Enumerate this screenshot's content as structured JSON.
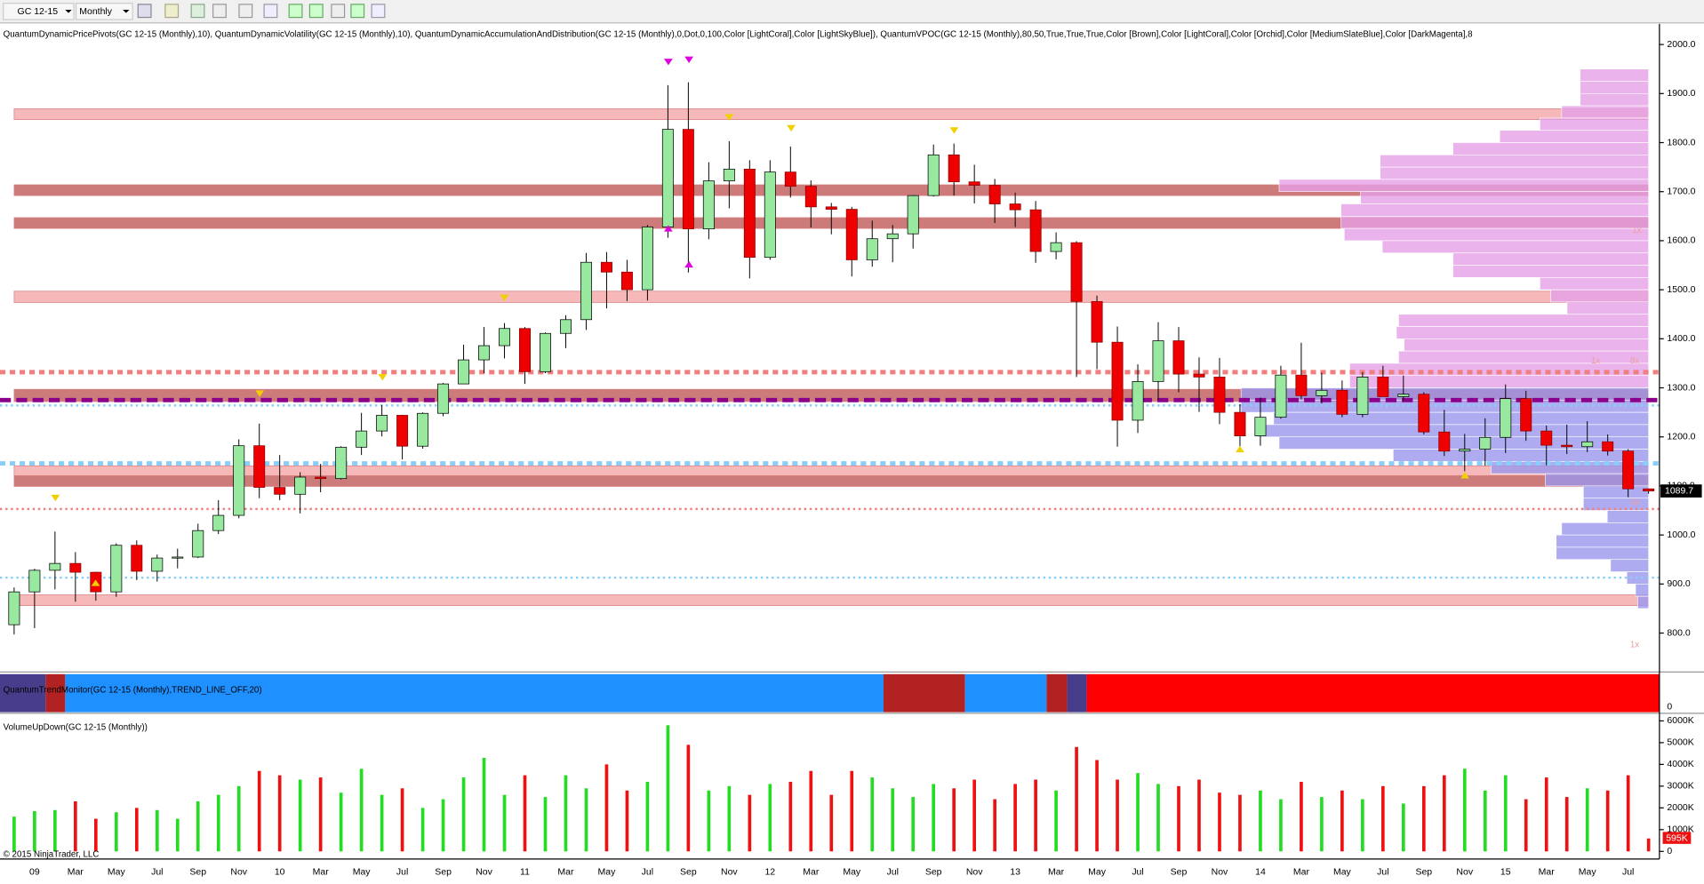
{
  "toolbar": {
    "symbol": "GC 12-15",
    "interval": "Monthly"
  },
  "trend_monitor": {
    "label": "QuantumTrendMonitor(GC 12-15 (Monthly),TREND_LINE_OFF,20)",
    "yticks": [
      0
    ]
  },
  "copyright": "© 2015 NinjaTrader, LLC",
  "chart_data": [
    {
      "type": "candlestick",
      "title": "QuantumDynamicPricePivots(GC 12-15 (Monthly),10), QuantumDynamicVolatility(GC 12-15 (Monthly),10), QuantumDynamicAccumulationAndDistribution(GC 12-15 (Monthly),0,Dot,0,100,Color [LightCoral],Color [LightSkyBlue]), QuantumVPOC(GC 12-15 (Monthly),80,50,True,True,True,Color [Brown],Color [LightCoral],Color [Orchid],Color [MediumSlateBlue],Color [DarkMagenta],8",
      "categories": [
        null,
        "09",
        null,
        "Mar",
        null,
        "May",
        null,
        "Jul",
        null,
        "Sep",
        null,
        "Nov",
        null,
        "10",
        null,
        "Mar",
        null,
        "May",
        null,
        "Jul",
        null,
        "Sep",
        null,
        "Nov",
        null,
        "11",
        null,
        "Mar",
        null,
        "May",
        null,
        "Jul",
        null,
        "Sep",
        null,
        "Nov",
        null,
        "12",
        null,
        "Mar",
        null,
        "May",
        null,
        "Jul",
        null,
        "Sep",
        null,
        "Nov",
        null,
        "13",
        null,
        "Mar",
        null,
        "May",
        null,
        "Jul",
        null,
        "Sep",
        null,
        "Nov",
        null,
        "14",
        null,
        "Mar",
        null,
        "May",
        null,
        "Jul",
        null,
        "Sep",
        null,
        "Nov",
        null,
        "15",
        null,
        "Mar",
        null,
        "May",
        null,
        "Jul",
        null
      ],
      "open": [
        817,
        884,
        928,
        942,
        924,
        884,
        979,
        926,
        953,
        955,
        1009,
        1040,
        1182,
        1097,
        1083,
        1118,
        1115,
        1179,
        1212,
        1244,
        1181,
        1248,
        1308,
        1357,
        1386,
        1421,
        1333,
        1411,
        1439,
        1556,
        1536,
        1500,
        1628,
        1827,
        1624,
        1722,
        1746,
        1566,
        1740,
        1711,
        1669,
        1664,
        1561,
        1604,
        1614,
        1692,
        1775,
        1720,
        1713,
        1675,
        1663,
        1578,
        1596,
        1476,
        1393,
        1234,
        1313,
        1396,
        1328,
        1322,
        1250,
        1202,
        1240,
        1326,
        1284,
        1295,
        1246,
        1322,
        1282,
        1287,
        1210,
        1171,
        1175,
        1199,
        1278,
        1212,
        1183,
        1180,
        1190,
        1171,
        1094
      ],
      "high": [
        893,
        931,
        1007,
        965,
        925,
        983,
        989,
        960,
        972,
        1023,
        1071,
        1195,
        1227,
        1163,
        1128,
        1145,
        1181,
        1249,
        1265,
        1245,
        1250,
        1310,
        1388,
        1424,
        1432,
        1424,
        1413,
        1448,
        1575,
        1577,
        1561,
        1632,
        1917,
        1923,
        1760,
        1803,
        1764,
        1764,
        1792,
        1723,
        1677,
        1669,
        1641,
        1632,
        1693,
        1796,
        1798,
        1755,
        1726,
        1698,
        1681,
        1617,
        1599,
        1488,
        1425,
        1348,
        1434,
        1424,
        1362,
        1361,
        1267,
        1280,
        1345,
        1392,
        1331,
        1315,
        1332,
        1345,
        1325,
        1291,
        1255,
        1206,
        1238,
        1307,
        1294,
        1223,
        1225,
        1232,
        1205,
        1175,
        1095
      ],
      "low": [
        797,
        810,
        889,
        864,
        866,
        874,
        908,
        905,
        932,
        953,
        1002,
        1034,
        1075,
        1071,
        1044,
        1087,
        1113,
        1163,
        1201,
        1154,
        1176,
        1242,
        1318,
        1330,
        1360,
        1308,
        1330,
        1381,
        1418,
        1462,
        1477,
        1478,
        1606,
        1535,
        1603,
        1666,
        1523,
        1561,
        1688,
        1627,
        1613,
        1527,
        1547,
        1556,
        1584,
        1690,
        1692,
        1676,
        1636,
        1628,
        1555,
        1562,
        1322,
        1338,
        1180,
        1208,
        1275,
        1291,
        1251,
        1226,
        1180,
        1182,
        1237,
        1277,
        1268,
        1240,
        1240,
        1283,
        1273,
        1205,
        1161,
        1130,
        1141,
        1167,
        1192,
        1142,
        1165,
        1169,
        1162,
        1077,
        1084
      ],
      "close": [
        884,
        928,
        942,
        924,
        884,
        979,
        926,
        953,
        955,
        1009,
        1040,
        1182,
        1097,
        1083,
        1118,
        1115,
        1179,
        1212,
        1244,
        1181,
        1248,
        1308,
        1357,
        1386,
        1421,
        1333,
        1411,
        1439,
        1556,
        1536,
        1500,
        1628,
        1827,
        1624,
        1722,
        1746,
        1566,
        1740,
        1711,
        1669,
        1664,
        1561,
        1604,
        1614,
        1692,
        1775,
        1720,
        1713,
        1675,
        1663,
        1578,
        1596,
        1476,
        1393,
        1234,
        1313,
        1396,
        1328,
        1322,
        1250,
        1202,
        1240,
        1326,
        1284,
        1295,
        1246,
        1322,
        1282,
        1287,
        1210,
        1171,
        1175,
        1199,
        1278,
        1212,
        1183,
        1180,
        1190,
        1171,
        1094,
        1089.7
      ],
      "up_color": "#98e8a0",
      "down_color": "#ee0000",
      "ylim": [
        765,
        2042
      ],
      "yticks": [
        {
          "value": 800,
          "label": "800.0"
        },
        {
          "value": 900,
          "label": "900.0"
        },
        {
          "value": 1000,
          "label": "1000.0"
        },
        {
          "value": 1100,
          "label": "1100.0"
        },
        {
          "value": 1200,
          "label": "1200.0"
        },
        {
          "value": 1300,
          "label": "1300.0"
        },
        {
          "value": 1400,
          "label": "1400.0"
        },
        {
          "value": 1500,
          "label": "1500.0"
        },
        {
          "value": 1600,
          "label": "1600.0"
        },
        {
          "value": 1700,
          "label": "1700.0"
        },
        {
          "value": 1800,
          "label": "1800.0"
        },
        {
          "value": 1900,
          "label": "1900.0"
        },
        {
          "value": 2000,
          "label": "2000.0"
        }
      ],
      "zones": [
        {
          "low": 1847,
          "high": 1869,
          "color": "#f6b8b8"
        },
        {
          "low": 1692,
          "high": 1714,
          "color": "#cd7a7a"
        },
        {
          "low": 1625,
          "high": 1647,
          "color": "#cd7a7a"
        },
        {
          "low": 1474,
          "high": 1497,
          "color": "#f6b8b8"
        },
        {
          "low": 1272,
          "high": 1297,
          "color": "#cd7a7a"
        },
        {
          "low": 1121,
          "high": 1141,
          "color": "#f6b8b8"
        },
        {
          "low": 1099,
          "high": 1121,
          "color": "#cd7a7a"
        },
        {
          "low": 856,
          "high": 878,
          "color": "#f6b8b8"
        }
      ],
      "levels": [
        {
          "value": 1332,
          "color": "#f08080",
          "style": "dotted",
          "weight": "heavy"
        },
        {
          "value": 1275,
          "color": "#8b008b",
          "style": "dashed",
          "weight": "heavy"
        },
        {
          "value": 1264,
          "color": "#87cefa",
          "style": "dotted",
          "weight": "light"
        },
        {
          "value": 1146,
          "color": "#87cefa",
          "style": "dotted",
          "weight": "heavy"
        },
        {
          "value": 1053,
          "color": "#f08080",
          "style": "dotted",
          "weight": "light"
        },
        {
          "value": 913,
          "color": "#87cefa",
          "style": "dotted",
          "weight": "light"
        }
      ],
      "profile": {
        "bins": [
          1950,
          1925,
          1900,
          1875,
          1850,
          1825,
          1800,
          1775,
          1750,
          1725,
          1700,
          1675,
          1650,
          1625,
          1600,
          1575,
          1550,
          1525,
          1500,
          1475,
          1450,
          1425,
          1400,
          1375,
          1350,
          1325,
          1300,
          1275,
          1250,
          1225,
          1200,
          1175,
          1150,
          1125,
          1100,
          1075,
          1050,
          1025,
          1000,
          975,
          950,
          925,
          900,
          875,
          850
        ],
        "volumes": [
          63,
          63,
          63,
          80,
          100,
          137,
          180,
          247,
          247,
          340,
          265,
          283,
          283,
          280,
          245,
          180,
          180,
          100,
          90,
          75,
          230,
          232,
          225,
          230,
          275,
          275,
          375,
          375,
          345,
          360,
          340,
          235,
          145,
          95,
          60,
          60,
          38,
          80,
          85,
          85,
          35,
          20,
          12,
          10
        ],
        "split": 1300,
        "color_above": "#e6a0e6",
        "color_below": "#9b96ee"
      },
      "annotations": [
        "1x",
        "1x",
        "8x",
        "4x",
        "1x"
      ]
    },
    {
      "type": "bar",
      "title": "VolumeUpDown(GC 12-15 (Monthly))",
      "values": [
        1600,
        1850,
        1900,
        2300,
        1500,
        1800,
        2000,
        1900,
        1500,
        2300,
        2600,
        3000,
        3700,
        3500,
        3300,
        3400,
        2700,
        3800,
        2600,
        2900,
        2000,
        2400,
        3400,
        4300,
        2600,
        3500,
        2500,
        3500,
        2900,
        4000,
        2800,
        3200,
        5800,
        4900,
        2800,
        3000,
        2600,
        3100,
        3200,
        3700,
        2600,
        3700,
        3400,
        2900,
        2500,
        3100,
        2900,
        3300,
        2400,
        3100,
        3300,
        2800,
        4800,
        4200,
        3300,
        3600,
        3100,
        3000,
        3300,
        2700,
        2600,
        2800,
        2400,
        3200,
        2500,
        2800,
        2400,
        3000,
        2200,
        3000,
        3500,
        3800,
        2800,
        3500,
        2400,
        3400,
        2500,
        2900,
        2800,
        3500,
        595
      ],
      "value_labels": [
        null,
        null,
        null,
        null,
        null,
        null,
        null,
        null,
        null,
        null,
        null,
        null,
        null,
        null,
        null,
        null,
        null,
        null,
        null,
        null,
        null,
        null,
        null,
        null,
        null,
        null,
        null,
        null,
        null,
        null,
        null,
        null,
        null,
        null,
        null,
        null,
        null,
        null,
        null,
        null,
        null,
        null,
        null,
        null,
        null,
        null,
        null,
        null,
        null,
        null,
        null,
        null,
        null,
        null,
        null,
        null,
        null,
        null,
        null,
        null,
        null,
        null,
        null,
        null,
        null,
        null,
        null,
        null,
        null,
        null,
        null,
        null,
        null,
        null,
        null,
        null,
        null,
        null,
        null,
        null,
        "595K"
      ],
      "up_color": "#22dd22",
      "down_color": "#ee1111",
      "ylim": [
        -350,
        6300
      ],
      "yticks": [
        0,
        {
          "value": 1000,
          "label": "1000K"
        },
        {
          "value": 2000,
          "label": "2000K"
        },
        {
          "value": 3000,
          "label": "3000K"
        },
        {
          "value": 4000,
          "label": "4000K"
        },
        {
          "value": 5000,
          "label": "5000K"
        },
        {
          "value": 6000,
          "label": "6000K"
        }
      ]
    }
  ]
}
